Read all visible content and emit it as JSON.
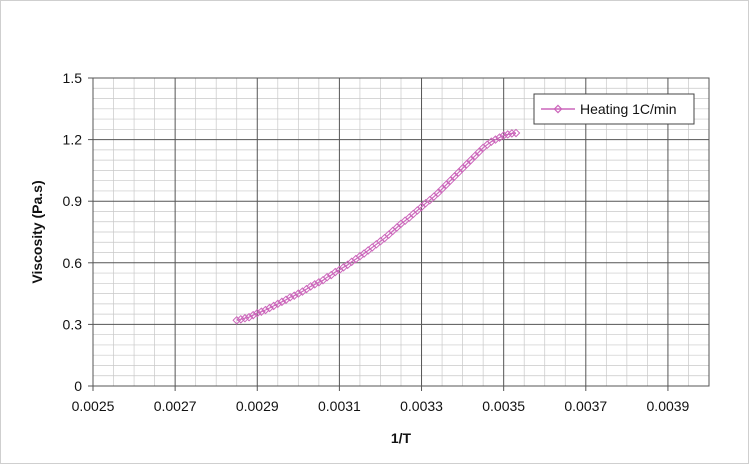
{
  "chart_data": {
    "type": "scatter",
    "title": "",
    "xlabel": "1/T",
    "ylabel": "Viscosity (Pa.s)",
    "xlim": [
      0.0025,
      0.004
    ],
    "ylim": [
      0,
      1.5
    ],
    "x_ticks": [
      "0.0025",
      "0.0027",
      "0.0029",
      "0.0031",
      "0.0033",
      "0.0035",
      "0.0037",
      "0.0039"
    ],
    "y_ticks": [
      "0",
      "0.3",
      "0.6",
      "0.9",
      "1.2",
      "1.5"
    ],
    "grid": true,
    "minor_grid": true,
    "legend_position": "top-right",
    "series": [
      {
        "name": "Heating 1C/min",
        "color": "#cc66bb",
        "marker": "diamond-open",
        "points": [
          [
            0.00285,
            0.32
          ],
          [
            0.00286,
            0.325
          ],
          [
            0.00287,
            0.33
          ],
          [
            0.00288,
            0.335
          ],
          [
            0.00289,
            0.345
          ],
          [
            0.0029,
            0.355
          ],
          [
            0.00291,
            0.362
          ],
          [
            0.00292,
            0.37
          ],
          [
            0.00293,
            0.38
          ],
          [
            0.00294,
            0.39
          ],
          [
            0.00295,
            0.4
          ],
          [
            0.00296,
            0.41
          ],
          [
            0.00297,
            0.42
          ],
          [
            0.00298,
            0.432
          ],
          [
            0.00299,
            0.44
          ],
          [
            0.003,
            0.45
          ],
          [
            0.00301,
            0.46
          ],
          [
            0.00302,
            0.472
          ],
          [
            0.00303,
            0.485
          ],
          [
            0.00304,
            0.495
          ],
          [
            0.00305,
            0.505
          ],
          [
            0.00306,
            0.515
          ],
          [
            0.00307,
            0.53
          ],
          [
            0.00308,
            0.54
          ],
          [
            0.00309,
            0.555
          ],
          [
            0.0031,
            0.565
          ],
          [
            0.00311,
            0.578
          ],
          [
            0.00312,
            0.59
          ],
          [
            0.00313,
            0.605
          ],
          [
            0.00314,
            0.618
          ],
          [
            0.00315,
            0.632
          ],
          [
            0.00316,
            0.645
          ],
          [
            0.00317,
            0.66
          ],
          [
            0.00318,
            0.675
          ],
          [
            0.00319,
            0.69
          ],
          [
            0.0032,
            0.705
          ],
          [
            0.00321,
            0.72
          ],
          [
            0.00322,
            0.737
          ],
          [
            0.00323,
            0.755
          ],
          [
            0.00324,
            0.772
          ],
          [
            0.00325,
            0.79
          ],
          [
            0.00326,
            0.805
          ],
          [
            0.00327,
            0.82
          ],
          [
            0.00328,
            0.838
          ],
          [
            0.00329,
            0.855
          ],
          [
            0.0033,
            0.872
          ],
          [
            0.00331,
            0.89
          ],
          [
            0.00332,
            0.905
          ],
          [
            0.00333,
            0.922
          ],
          [
            0.00334,
            0.94
          ],
          [
            0.00335,
            0.96
          ],
          [
            0.00336,
            0.98
          ],
          [
            0.00337,
            1.0
          ],
          [
            0.00338,
            1.02
          ],
          [
            0.00339,
            1.04
          ],
          [
            0.0034,
            1.06
          ],
          [
            0.00341,
            1.08
          ],
          [
            0.00342,
            1.1
          ],
          [
            0.00343,
            1.12
          ],
          [
            0.00344,
            1.14
          ],
          [
            0.00345,
            1.16
          ],
          [
            0.00346,
            1.175
          ],
          [
            0.00347,
            1.19
          ],
          [
            0.00348,
            1.2
          ],
          [
            0.00349,
            1.21
          ],
          [
            0.0035,
            1.22
          ],
          [
            0.00351,
            1.225
          ],
          [
            0.00352,
            1.23
          ],
          [
            0.00353,
            1.232
          ]
        ]
      }
    ]
  }
}
